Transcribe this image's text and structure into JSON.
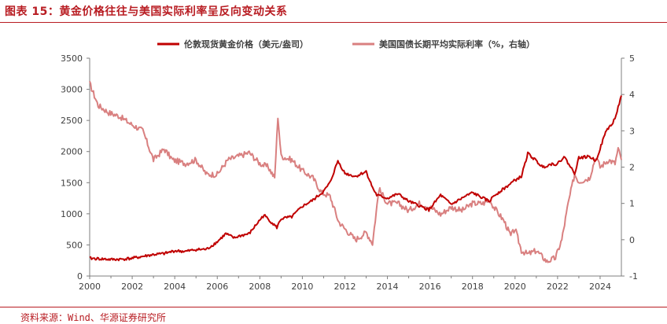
{
  "figure": {
    "title": "图表 15：黄金价格往往与美国实际利率呈反向变动关系",
    "source": "资料来源：Wind、华源证券研究所"
  },
  "colors": {
    "brand": "#b81c22",
    "gold_series": "#c00000",
    "rate_series": "#d98080",
    "axis": "#7f7f7f",
    "text": "#404040"
  },
  "chart_data": {
    "type": "line",
    "title": "",
    "xlabel": "",
    "ylabel": "",
    "y2label": "",
    "legend_position": "top",
    "grid": false,
    "xlim": [
      2000,
      2025
    ],
    "ylim": [
      0,
      3500
    ],
    "y2lim": [
      -1,
      5
    ],
    "x_ticks": [
      2000,
      2002,
      2004,
      2006,
      2008,
      2010,
      2012,
      2014,
      2016,
      2018,
      2020,
      2022,
      2024
    ],
    "x_tick_labels": [
      "2000",
      "2002",
      "2004",
      "2006",
      "2008",
      "2010",
      "2012",
      "2014",
      "2016",
      "2018",
      "2020",
      "2022",
      "2024"
    ],
    "y_ticks": [
      0,
      500,
      1000,
      1500,
      2000,
      2500,
      3000,
      3500
    ],
    "y_tick_labels": [
      "0",
      "500",
      "1000",
      "1500",
      "2000",
      "2500",
      "3000",
      "3500"
    ],
    "y2_ticks": [
      -1,
      0,
      1,
      2,
      3,
      4,
      5
    ],
    "y2_tick_labels": [
      "-1",
      "0",
      "1",
      "2",
      "3",
      "4",
      "5"
    ],
    "series": [
      {
        "name": "伦敦现货黄金价格（美元/盎司）",
        "axis": "left",
        "x": [
          2000.0,
          2000.5,
          2001.0,
          2001.5,
          2002.0,
          2002.5,
          2003.0,
          2003.5,
          2004.0,
          2004.5,
          2005.0,
          2005.5,
          2006.0,
          2006.4,
          2006.8,
          2007.0,
          2007.5,
          2008.0,
          2008.2,
          2008.5,
          2008.8,
          2009.0,
          2009.5,
          2010.0,
          2010.5,
          2011.0,
          2011.3,
          2011.67,
          2012.0,
          2012.5,
          2013.0,
          2013.3,
          2013.5,
          2014.0,
          2014.5,
          2015.0,
          2015.5,
          2015.95,
          2016.5,
          2017.0,
          2017.5,
          2018.0,
          2018.5,
          2018.8,
          2019.0,
          2019.5,
          2020.0,
          2020.3,
          2020.6,
          2020.9,
          2021.3,
          2021.7,
          2022.0,
          2022.3,
          2022.8,
          2023.0,
          2023.5,
          2023.8,
          2024.0,
          2024.3,
          2024.6,
          2024.8,
          2025.0
        ],
        "y": [
          285,
          275,
          265,
          270,
          285,
          315,
          345,
          360,
          405,
          395,
          425,
          430,
          550,
          680,
          610,
          640,
          680,
          900,
          980,
          880,
          780,
          920,
          950,
          1120,
          1220,
          1360,
          1500,
          1850,
          1650,
          1600,
          1680,
          1420,
          1300,
          1250,
          1320,
          1200,
          1130,
          1060,
          1300,
          1150,
          1250,
          1340,
          1250,
          1200,
          1290,
          1410,
          1540,
          1600,
          1970,
          1880,
          1750,
          1800,
          1800,
          1920,
          1650,
          1900,
          1920,
          1850,
          2050,
          2350,
          2450,
          2650,
          2900
        ]
      },
      {
        "name": "美国国债长期平均实际利率（%，右轴）",
        "axis": "right",
        "x": [
          2000.0,
          2000.4,
          2000.9,
          2001.4,
          2001.9,
          2002.5,
          2003.0,
          2003.5,
          2003.9,
          2004.5,
          2005.0,
          2005.5,
          2006.0,
          2006.5,
          2007.0,
          2007.5,
          2008.0,
          2008.4,
          2008.7,
          2008.85,
          2009.0,
          2009.5,
          2010.0,
          2010.5,
          2010.9,
          2011.3,
          2011.7,
          2012.0,
          2012.5,
          2013.0,
          2013.3,
          2013.6,
          2014.0,
          2014.5,
          2015.0,
          2015.5,
          2016.0,
          2016.5,
          2017.0,
          2017.5,
          2018.0,
          2018.5,
          2018.8,
          2019.0,
          2019.5,
          2019.8,
          2020.0,
          2020.3,
          2020.6,
          2021.0,
          2021.5,
          2021.9,
          2022.2,
          2022.5,
          2022.8,
          2023.0,
          2023.5,
          2023.8,
          2024.0,
          2024.4,
          2024.7,
          2024.85,
          2025.0
        ],
        "y": [
          4.3,
          3.7,
          3.5,
          3.4,
          3.2,
          3.0,
          2.2,
          2.5,
          2.2,
          2.1,
          2.2,
          1.8,
          1.8,
          2.2,
          2.3,
          2.4,
          2.1,
          2.0,
          1.7,
          3.4,
          2.3,
          2.2,
          1.9,
          1.7,
          1.3,
          1.2,
          0.5,
          0.3,
          0.0,
          0.2,
          -0.1,
          1.4,
          1.0,
          1.0,
          0.8,
          1.0,
          0.9,
          0.7,
          0.9,
          0.8,
          1.0,
          1.0,
          1.1,
          0.9,
          0.5,
          0.1,
          0.3,
          -0.3,
          -0.4,
          -0.3,
          -0.6,
          -0.5,
          0.0,
          1.0,
          1.8,
          1.6,
          1.7,
          2.3,
          2.0,
          2.2,
          2.1,
          2.5,
          2.2
        ]
      }
    ]
  }
}
